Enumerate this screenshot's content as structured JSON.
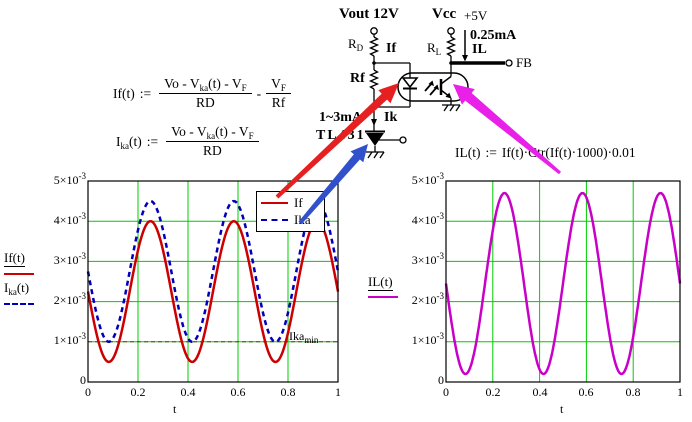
{
  "colors": {
    "grid": "#00CC00",
    "if_trace": "#CC0000",
    "ika_trace": "#0000BB",
    "il_trace": "#C800C8",
    "ikamin_line": "#7A3030",
    "arrow_red": "#E62020",
    "arrow_blue": "#3050CC",
    "arrow_magenta": "#E820E8"
  },
  "circuit": {
    "vout": "Vout 12V",
    "vcc": "Vcc",
    "vcc_v": "+5V",
    "rd_base": "R",
    "rd_sub": "D",
    "rl_base": "R",
    "rl_sub": "L",
    "rf": "Rf",
    "if_label": "If",
    "il_value": "0.25mA",
    "il_label": "IL",
    "fb": "FB",
    "ik_range": "1~3mA",
    "ik_label": "Ik",
    "tl431": "TL431"
  },
  "formulas": {
    "f1": {
      "lhs": "If(t)",
      "assign": ":=",
      "num_a": "Vo - V",
      "num_sub1": "ka",
      "num_b": "(t) - V",
      "num_sub2": "F",
      "den": "RD",
      "minus": "-",
      "num2_a": "V",
      "num2_sub": "F",
      "den2": "Rf"
    },
    "f2": {
      "lhs_a": "I",
      "lhs_sub": "ka",
      "lhs_b": "(t)",
      "assign": ":=",
      "num_a": "Vo - V",
      "num_sub1": "ka",
      "num_b": "(t) - V",
      "num_sub2": "F",
      "den": "RD"
    },
    "f3": {
      "lhs": "IL(t)",
      "assign": ":=",
      "rhs": "If(t)·Ctr(If(t)·1000)·0.01"
    }
  },
  "plots": {
    "y_ticks": [
      {
        "base": "5×10",
        "sup": "-3"
      },
      {
        "base": "4×10",
        "sup": "-3"
      },
      {
        "base": "3×10",
        "sup": "-3"
      },
      {
        "base": "2×10",
        "sup": "-3"
      },
      {
        "base": "1×10",
        "sup": "-3"
      }
    ],
    "y_zero": "0",
    "x_ticks": [
      "0",
      "0.2",
      "0.4",
      "0.6",
      "0.8",
      "1"
    ],
    "x_label": "t",
    "left": {
      "legend": [
        {
          "label": "If"
        },
        {
          "label": "Ika"
        }
      ],
      "trace1": "If(t)",
      "trace2_base": "I",
      "trace2_sub": "ka",
      "trace2_rest": "(t)",
      "ikamin_base": "Ika",
      "ikamin_sub": "min"
    },
    "right": {
      "trace": "IL(t)"
    }
  },
  "chart_data": [
    {
      "type": "line",
      "title": "",
      "xlabel": "t",
      "x_range": [
        0,
        1
      ],
      "y_range": [
        0,
        0.005
      ],
      "x_ticks": [
        0,
        0.2,
        0.4,
        0.6,
        0.8,
        1
      ],
      "y_ticks": [
        0,
        0.001,
        0.002,
        0.003,
        0.004,
        0.005
      ],
      "grid": true,
      "legend_position": "top-right",
      "waveform": "y(t) = mid - amp*sin(2*pi*cycles*t)",
      "series": [
        {
          "name": "If",
          "color": "#CC0000",
          "style": "solid",
          "min": 0.0005,
          "max": 0.004,
          "cycles": 3
        },
        {
          "name": "Ika",
          "color": "#0000BB",
          "style": "dashed",
          "min": 0.001,
          "max": 0.0045,
          "cycles": 3
        }
      ],
      "annotations": [
        {
          "name": "Ika_min",
          "y": 0.001,
          "style": "dashed",
          "color": "#7A3030"
        }
      ]
    },
    {
      "type": "line",
      "title": "",
      "xlabel": "t",
      "x_range": [
        0,
        1
      ],
      "y_range": [
        0,
        0.005
      ],
      "x_ticks": [
        0,
        0.2,
        0.4,
        0.6,
        0.8,
        1
      ],
      "y_ticks": [
        0,
        0.001,
        0.002,
        0.003,
        0.004,
        0.005
      ],
      "grid": true,
      "waveform": "y(t) = mid - amp*sin(2*pi*cycles*t)",
      "series": [
        {
          "name": "IL",
          "color": "#C800C8",
          "style": "solid",
          "min": 0.0002,
          "max": 0.0047,
          "cycles": 3
        }
      ],
      "annotations": []
    }
  ]
}
